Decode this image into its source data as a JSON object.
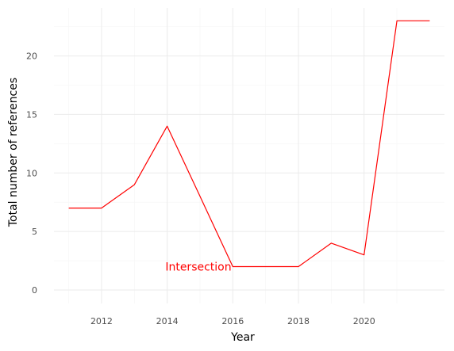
{
  "chart_data": {
    "type": "line",
    "title": "",
    "xlabel": "Year",
    "ylabel": "Total number of references",
    "xlim": [
      2010.55,
      2022.45
    ],
    "ylim": [
      -1.15,
      24.1
    ],
    "x_ticks": [
      2012,
      2014,
      2016,
      2018,
      2020
    ],
    "y_ticks": [
      0,
      5,
      10,
      15,
      20
    ],
    "grid": true,
    "legend": "none",
    "series": [
      {
        "color": "#ff0000",
        "x": [
          2011,
          2012,
          2013,
          2014,
          2015,
          2016,
          2017,
          2018,
          2019,
          2020,
          2021,
          2022
        ],
        "y": [
          7,
          7,
          9,
          14,
          8,
          2,
          2,
          2,
          4,
          3,
          23,
          23
        ]
      }
    ],
    "annotations": [
      {
        "text": "Intersection",
        "x": 2015,
        "y": 2,
        "color": "#ff0000"
      }
    ]
  }
}
